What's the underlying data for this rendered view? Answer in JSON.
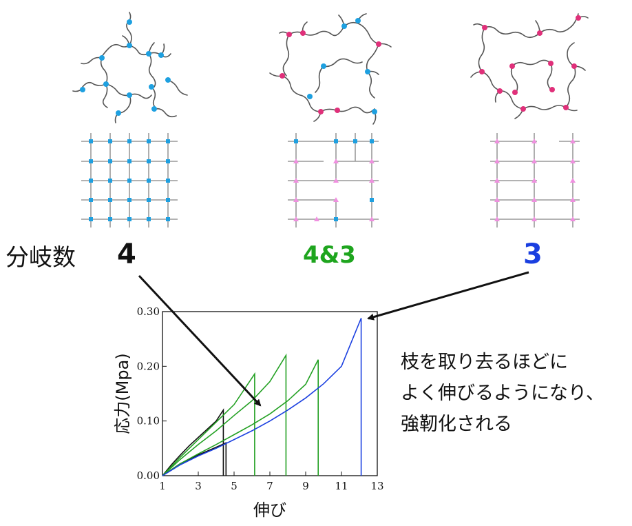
{
  "wedge": {
    "label": "分岐数",
    "branch_left": "4",
    "branch_middle": "4&3",
    "branch_right": "3",
    "colors": {
      "wedge": "#4a4a4a",
      "left": "#111111",
      "middle": "#1ea51e",
      "right": "#1a3fe0"
    }
  },
  "networks": {
    "node_colors": {
      "four_arm": "#1ea0e0",
      "three_arm": "#e0307a",
      "three_arm_lattice": "#f090e0"
    }
  },
  "note": {
    "lines": [
      "枝を取り去るほどに",
      "よく伸びるようになり、",
      "強靭化される"
    ]
  },
  "chart_data": {
    "type": "line",
    "xlabel": "伸び",
    "ylabel": "応力(Mpa)",
    "xlim": [
      1,
      13
    ],
    "ylim": [
      0,
      0.3
    ],
    "xticks": [
      "1",
      "3",
      "5",
      "7",
      "9",
      "11",
      "13"
    ],
    "yticks": [
      "0.00",
      "0.10",
      "0.20",
      "0.30"
    ],
    "series": [
      {
        "color": "#111111",
        "x": [
          1,
          1.5,
          2,
          2.5,
          3,
          3.5,
          4,
          4.4,
          4.4
        ],
        "y": [
          0,
          0.02,
          0.038,
          0.055,
          0.07,
          0.085,
          0.1,
          0.12,
          0
        ]
      },
      {
        "color": "#111111",
        "x": [
          1,
          2,
          3,
          4,
          4.55,
          4.55
        ],
        "y": [
          0,
          0.022,
          0.038,
          0.052,
          0.06,
          0
        ]
      },
      {
        "color": "#22a022",
        "x": [
          1,
          2,
          3,
          4,
          5,
          6.15,
          6.15
        ],
        "y": [
          0,
          0.034,
          0.066,
          0.098,
          0.13,
          0.186,
          0
        ]
      },
      {
        "color": "#22a022",
        "x": [
          1,
          2,
          3,
          4,
          5,
          6,
          7,
          7.9,
          7.9
        ],
        "y": [
          0,
          0.03,
          0.057,
          0.082,
          0.11,
          0.137,
          0.172,
          0.22,
          0
        ]
      },
      {
        "color": "#22a022",
        "x": [
          1,
          2,
          3,
          4,
          5,
          6,
          7,
          8,
          9,
          9.7,
          9.7
        ],
        "y": [
          0,
          0.022,
          0.04,
          0.057,
          0.075,
          0.093,
          0.113,
          0.137,
          0.167,
          0.212,
          0
        ]
      },
      {
        "color": "#1a3fe0",
        "x": [
          1,
          2,
          3,
          4,
          5,
          6,
          7,
          8,
          9,
          10,
          11,
          12.1,
          12.1
        ],
        "y": [
          0,
          0.02,
          0.036,
          0.05,
          0.066,
          0.082,
          0.1,
          0.12,
          0.142,
          0.168,
          0.2,
          0.288,
          0
        ]
      }
    ]
  }
}
